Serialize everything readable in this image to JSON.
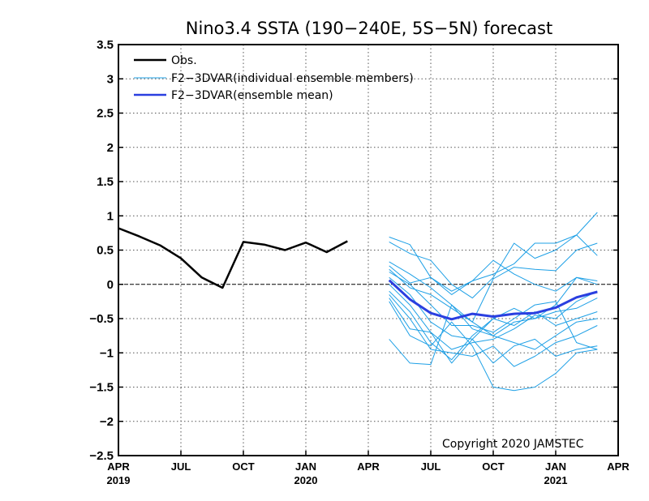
{
  "chart_data": {
    "type": "line",
    "title": "Nino3.4 SSTA (190−240E, 5S−5N) forecast",
    "copyright": "Copyright 2020 JAMSTEC",
    "ylim": [
      -2.5,
      3.5
    ],
    "yticks": [
      "3.5",
      "3",
      "2.5",
      "2",
      "1.5",
      "1",
      "0.5",
      "0",
      "−0.5",
      "−1",
      "−1.5",
      "−2",
      "−2.5"
    ],
    "ytick_values": [
      3.5,
      3,
      2.5,
      2,
      1.5,
      1,
      0.5,
      0,
      -0.5,
      -1,
      -1.5,
      -2,
      -2.5
    ],
    "xlim": [
      0,
      24
    ],
    "x_unit": "months since Apr 2019",
    "xticks": [
      {
        "x": 0,
        "label": "APR",
        "year": "2019"
      },
      {
        "x": 3,
        "label": "JUL",
        "year": ""
      },
      {
        "x": 6,
        "label": "OCT",
        "year": ""
      },
      {
        "x": 9,
        "label": "JAN",
        "year": "2020"
      },
      {
        "x": 12,
        "label": "APR",
        "year": ""
      },
      {
        "x": 15,
        "label": "JUL",
        "year": ""
      },
      {
        "x": 18,
        "label": "OCT",
        "year": ""
      },
      {
        "x": 21,
        "label": "JAN",
        "year": "2021"
      },
      {
        "x": 24,
        "label": "APR",
        "year": ""
      }
    ],
    "grid": true,
    "legend": {
      "position": "top-left",
      "entries": [
        {
          "key": "obs",
          "label": "Obs.",
          "color": "#000000"
        },
        {
          "key": "members",
          "label": "F2−3DVAR(individual ensemble members)",
          "color": "#1ea0e6"
        },
        {
          "key": "mean",
          "label": "F2−3DVAR(ensemble mean)",
          "color": "#2a3fe0"
        }
      ]
    },
    "obs": {
      "name": "Obs.",
      "color": "#000000",
      "x": [
        0,
        1,
        2,
        3,
        4,
        5,
        6,
        7,
        8,
        9,
        10,
        11
      ],
      "values": [
        0.82,
        0.7,
        0.57,
        0.38,
        0.1,
        -0.05,
        0.62,
        0.58,
        0.5,
        0.61,
        0.47,
        0.63
      ]
    },
    "mean": {
      "name": "F2−3DVAR(ensemble mean)",
      "color": "#2a3fe0",
      "x": [
        13,
        14,
        15,
        16,
        17,
        18,
        19,
        20,
        21,
        22,
        23
      ],
      "values": [
        0.06,
        -0.22,
        -0.42,
        -0.51,
        -0.43,
        -0.47,
        -0.43,
        -0.42,
        -0.34,
        -0.19,
        -0.11
      ]
    },
    "members": {
      "name": "F2−3DVAR(individual ensemble members)",
      "color": "#1ea0e6",
      "x": [
        13,
        14,
        15,
        16,
        17,
        18,
        19,
        20,
        21,
        22,
        23
      ],
      "series": [
        [
          0.69,
          0.58,
          0.1,
          -0.1,
          0.05,
          0.15,
          0.3,
          0.6,
          0.6,
          0.72,
          1.05
        ],
        [
          0.62,
          0.45,
          0.35,
          0.0,
          -0.2,
          0.1,
          0.6,
          0.38,
          0.5,
          0.72,
          0.42
        ],
        [
          0.33,
          0.15,
          -0.05,
          -0.3,
          -0.55,
          0.08,
          0.25,
          0.22,
          0.2,
          0.5,
          0.6
        ],
        [
          0.27,
          0.02,
          0.1,
          -0.15,
          0.05,
          0.35,
          0.15,
          0.0,
          -0.1,
          0.1,
          0.0
        ],
        [
          0.22,
          -0.05,
          -0.15,
          -0.35,
          -0.55,
          -0.75,
          -0.55,
          -0.5,
          -0.3,
          0.1,
          0.05
        ],
        [
          0.18,
          0.0,
          -0.3,
          -0.6,
          -0.6,
          -0.7,
          -0.5,
          -0.3,
          -0.25,
          -0.85,
          -0.95
        ],
        [
          0.1,
          -0.15,
          -0.55,
          -0.75,
          -0.8,
          -0.5,
          -0.35,
          -0.5,
          -0.4,
          -0.35,
          -0.2
        ],
        [
          0.0,
          -0.3,
          -0.7,
          -0.95,
          -0.85,
          -0.8,
          -0.65,
          -0.45,
          -0.5,
          -0.25,
          -0.1
        ],
        [
          -0.1,
          -0.4,
          -0.85,
          -1.1,
          -0.75,
          -0.5,
          -0.6,
          -0.4,
          -0.6,
          -0.5,
          -0.4
        ],
        [
          -0.15,
          -0.5,
          -0.95,
          -1.0,
          -1.05,
          -0.9,
          -1.2,
          -1.05,
          -0.85,
          -0.75,
          -0.6
        ],
        [
          -0.2,
          -0.65,
          -0.7,
          -1.15,
          -0.8,
          -1.15,
          -0.9,
          -0.8,
          -1.05,
          -0.95,
          -0.9
        ],
        [
          -0.25,
          -0.75,
          -0.9,
          -0.55,
          -0.9,
          -1.5,
          -1.55,
          -1.5,
          -1.3,
          -1.0,
          -0.95
        ],
        [
          -0.8,
          -1.15,
          -1.17,
          -0.3,
          -0.65,
          -0.75,
          -0.85,
          -0.95,
          -0.75,
          -0.55,
          -0.5
        ]
      ]
    }
  }
}
